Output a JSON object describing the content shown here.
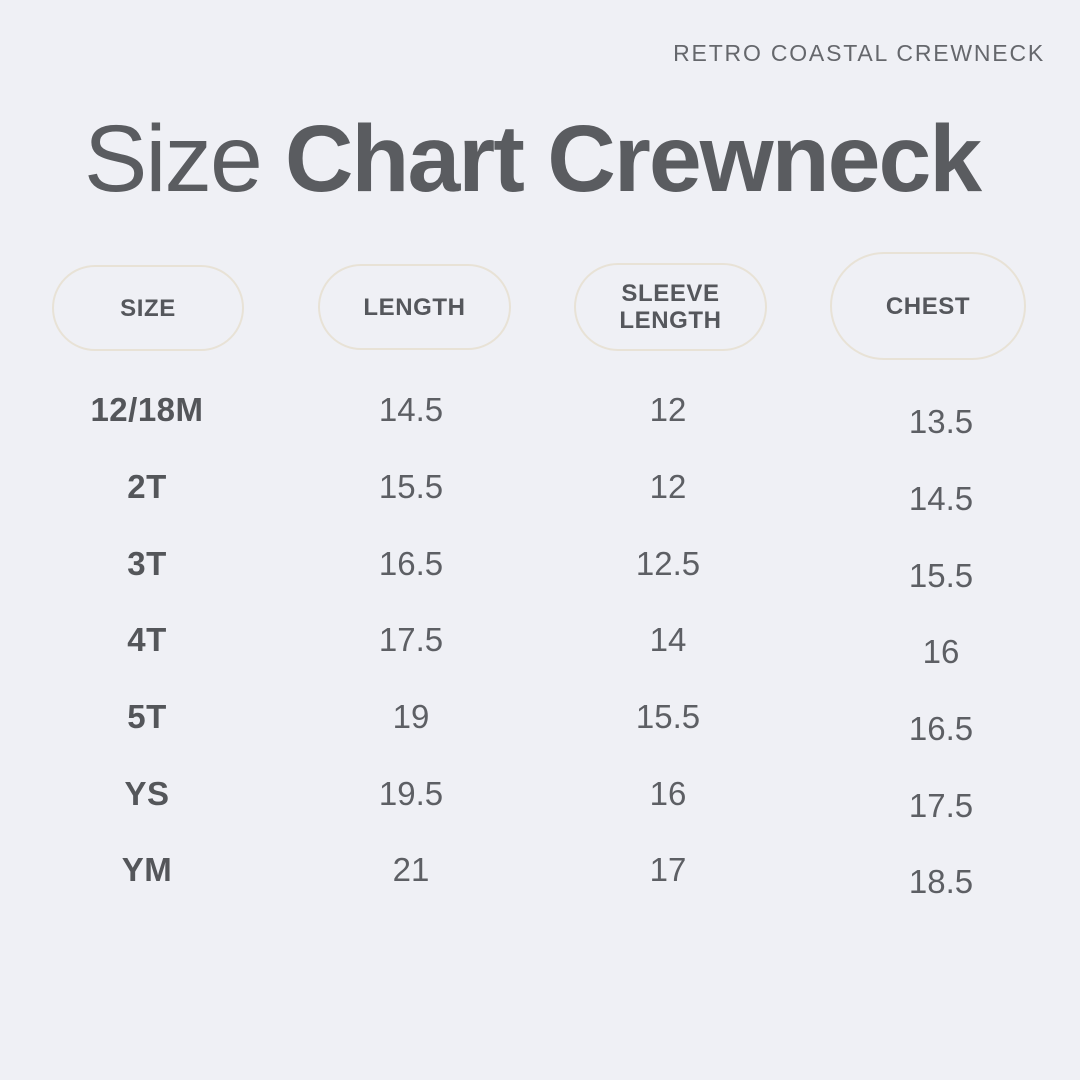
{
  "page": {
    "brand_label": "RETRO COASTAL CREWNECK",
    "title_regular": "Size",
    "title_bold": "Chart Crewneck"
  },
  "chart_data": {
    "type": "table",
    "title": "Size Chart Crewneck",
    "columns": [
      "SIZE",
      "LENGTH",
      "SLEEVE LENGTH",
      "CHEST"
    ],
    "rows": [
      {
        "size": "12/18M",
        "length": "14.5",
        "sleeve_length": "12",
        "chest": "13.5"
      },
      {
        "size": "2T",
        "length": "15.5",
        "sleeve_length": "12",
        "chest": "14.5"
      },
      {
        "size": "3T",
        "length": "16.5",
        "sleeve_length": "12.5",
        "chest": "15.5"
      },
      {
        "size": "4T",
        "length": "17.5",
        "sleeve_length": "14",
        "chest": "16"
      },
      {
        "size": "5T",
        "length": "19",
        "sleeve_length": "15.5",
        "chest": "16.5"
      },
      {
        "size": "YS",
        "length": "19.5",
        "sleeve_length": "16",
        "chest": "17.5"
      },
      {
        "size": "YM",
        "length": "21",
        "sleeve_length": "17",
        "chest": "18.5"
      }
    ]
  },
  "colors": {
    "background": "#eff0f5",
    "title_text": "#5a5c60",
    "brand_text": "#65676c",
    "pill_border": "#e8e2d6",
    "pill_text": "#55575c",
    "value_text": "#5d5f64"
  }
}
